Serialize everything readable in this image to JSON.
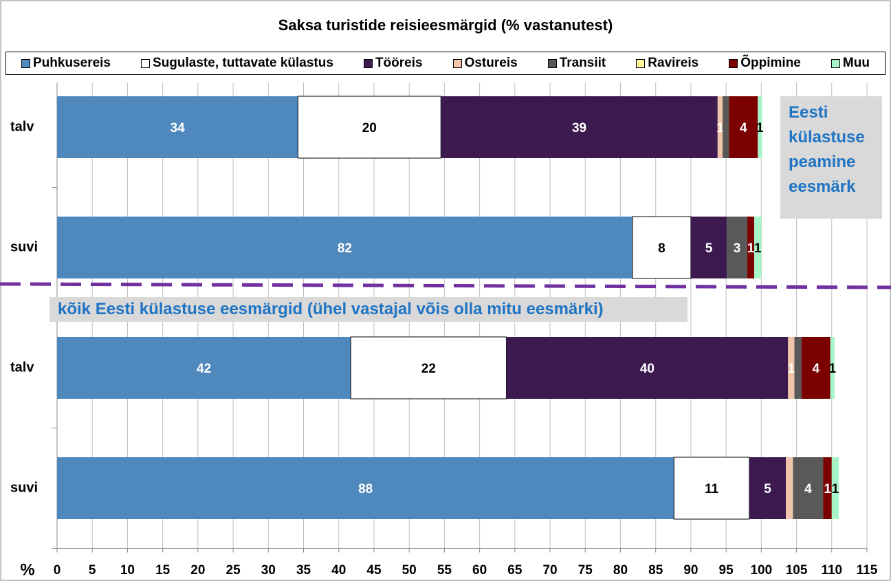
{
  "chart_data": {
    "type": "stacked-bar-horizontal",
    "title": "Saksa turistide reisieesmärgid (% vastanutest)",
    "x_label": "%",
    "categories": [
      "talv",
      "suvi",
      "talv",
      "suvi"
    ],
    "xlim": [
      0,
      115
    ],
    "xticks": [
      0,
      5,
      10,
      15,
      20,
      25,
      30,
      35,
      40,
      45,
      50,
      55,
      60,
      65,
      70,
      75,
      80,
      85,
      90,
      95,
      100,
      105,
      110,
      115
    ],
    "grid": true,
    "legend": "top",
    "annotations": [
      "Eesti külastuse peamine eesmärk",
      "kõik Eesti külastuse eesmärgid (ühel vastajal võis olla mitu eesmärki)"
    ],
    "series": [
      {
        "name": "Puhkusereis",
        "color": "#4f88bd",
        "label_color": "#ffffff",
        "values": [
          34.2,
          81.7,
          41.7,
          87.6
        ],
        "value_labels": [
          "34",
          "82",
          "42",
          "88"
        ]
      },
      {
        "name": "Sugulaste, tuttavate külastus",
        "color": "#ffffff",
        "label_color": "#000000",
        "values": [
          20.3,
          8.3,
          22.1,
          10.7
        ],
        "value_labels": [
          "20",
          "8",
          "22",
          "11"
        ]
      },
      {
        "name": "Tööreis",
        "color": "#3c1a50",
        "label_color": "#ffffff",
        "values": [
          39.3,
          5.1,
          40.0,
          5.2
        ],
        "value_labels": [
          "39",
          "5",
          "40",
          "5"
        ]
      },
      {
        "name": "Ostureis",
        "color": "#f2c5aa",
        "label_color": "#ffffff",
        "values": [
          0.7,
          0,
          0.9,
          1.0
        ],
        "value_labels": [
          "1",
          null,
          "1",
          null
        ]
      },
      {
        "name": "Transiit",
        "color": "#595959",
        "label_color": "#ffffff",
        "values": [
          0.9,
          2.9,
          1.0,
          4.3
        ],
        "value_labels": [
          null,
          "3",
          null,
          "4"
        ]
      },
      {
        "name": "Ravireis",
        "color": "#ffff99",
        "label_color": "#000000",
        "values": [
          0,
          0,
          0,
          0
        ],
        "value_labels": [
          null,
          null,
          null,
          null
        ]
      },
      {
        "name": "Õppimine",
        "color": "#7b0000",
        "label_color": "#ffffff",
        "values": [
          4.1,
          1.0,
          4.1,
          1.2
        ],
        "value_labels": [
          "4",
          "1",
          "4",
          "1"
        ]
      },
      {
        "name": "Muu",
        "color": "#a6f5c8",
        "label_color": "#000000",
        "values": [
          0.6,
          1.0,
          0.6,
          1.0
        ],
        "value_labels": [
          "1",
          "1",
          "1",
          "1"
        ]
      }
    ]
  }
}
